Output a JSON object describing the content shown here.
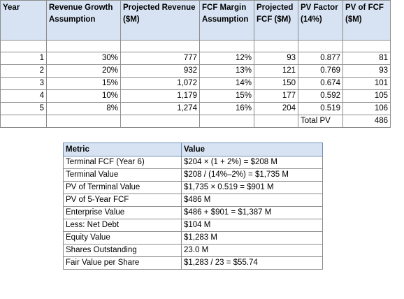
{
  "dcf_table": {
    "headers": [
      "Year",
      "Revenue Growth Assumption",
      "Projected Revenue ($M)",
      "FCF Margin Assumption",
      "Projected FCF ($M)",
      "PV Factor (14%)",
      "PV of FCF ($M)"
    ],
    "rows": [
      [
        "1",
        "30%",
        "777",
        "12%",
        "93",
        "0.877",
        "81"
      ],
      [
        "2",
        "20%",
        "932",
        "13%",
        "121",
        "0.769",
        "93"
      ],
      [
        "3",
        "15%",
        "1,072",
        "14%",
        "150",
        "0.674",
        "101"
      ],
      [
        "4",
        "10%",
        "1,179",
        "15%",
        "177",
        "0.592",
        "105"
      ],
      [
        "5",
        "8%",
        "1,274",
        "16%",
        "204",
        "0.519",
        "106"
      ]
    ],
    "total_label": "Total PV",
    "total_value": "486"
  },
  "metrics_table": {
    "headers": [
      "Metric",
      "Value"
    ],
    "rows": [
      [
        "Terminal FCF (Year 6)",
        "$204 × (1 + 2%) = $208 M"
      ],
      [
        "Terminal Value",
        "$208 / (14%–2%) = $1,735 M"
      ],
      [
        "PV of Terminal Value",
        "$1,735 × 0.519 = $901 M"
      ],
      [
        "PV of 5-Year FCF",
        "$486 M"
      ],
      [
        "Enterprise Value",
        "$486 + $901 = $1,387 M"
      ],
      [
        "Less: Net Debt",
        "$104 M"
      ],
      [
        "Equity Value",
        "$1,283 M"
      ],
      [
        "Shares Outstanding",
        "23.0 M"
      ],
      [
        "Fair Value per Share",
        "$1,283 / 23 = $55.74"
      ]
    ]
  },
  "colors": {
    "header_fill": "#d7e3f3",
    "grid_line": "#8c8c8c"
  }
}
